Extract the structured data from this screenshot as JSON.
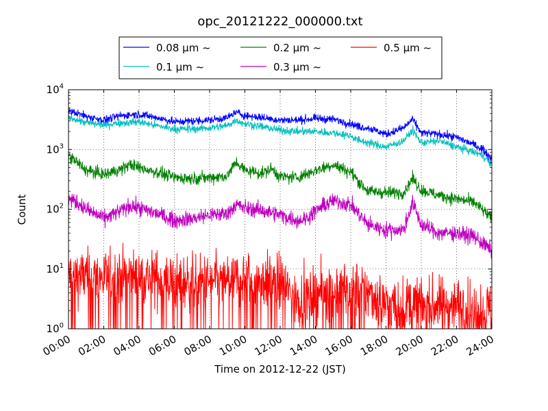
{
  "chart_data": {
    "type": "line",
    "title": "opc_20121222_000000.txt",
    "xlabel": "Time on 2012-12-22 (JST)",
    "ylabel": "Count",
    "yscale": "log",
    "ylim": [
      1,
      10000
    ],
    "xlim_hours": [
      0,
      24
    ],
    "grid": true,
    "legend_position": "top",
    "x_ticks": [
      "00:00",
      "02:00",
      "04:00",
      "06:00",
      "08:00",
      "10:00",
      "12:00",
      "14:00",
      "16:00",
      "18:00",
      "20:00",
      "22:00",
      "24:00"
    ],
    "y_ticks": [
      {
        "value": 1,
        "mantissa": "10",
        "exponent": "0"
      },
      {
        "value": 10,
        "mantissa": "10",
        "exponent": "1"
      },
      {
        "value": 100,
        "mantissa": "10",
        "exponent": "2"
      },
      {
        "value": 1000,
        "mantissa": "10",
        "exponent": "3"
      },
      {
        "value": 10000,
        "mantissa": "10",
        "exponent": "4"
      }
    ],
    "series": [
      {
        "name": "0.08 μm ~",
        "color": "#0000ff",
        "noise": 0.045,
        "x_hours": [
          0,
          1,
          2,
          3,
          4,
          5,
          6,
          7,
          8,
          9,
          9.5,
          10,
          11,
          12,
          13,
          14,
          15,
          16,
          16.5,
          17,
          18,
          19,
          19.5,
          20,
          21,
          22,
          23,
          23.5,
          24
        ],
        "values": [
          4500,
          3600,
          3100,
          3700,
          3900,
          3400,
          2900,
          3000,
          3100,
          3400,
          4200,
          3700,
          3400,
          3100,
          3100,
          3300,
          3200,
          2700,
          2400,
          2300,
          1800,
          2300,
          3200,
          1900,
          1800,
          1600,
          1200,
          1000,
          700
        ]
      },
      {
        "name": "0.1 μm ~",
        "color": "#00bfbf",
        "noise": 0.045,
        "x_hours": [
          0,
          1,
          2,
          3,
          4,
          5,
          6,
          7,
          8,
          9,
          9.5,
          10,
          11,
          12,
          13,
          14,
          15,
          16,
          16.5,
          17,
          18,
          19,
          19.5,
          20,
          21,
          22,
          23,
          23.5,
          24
        ],
        "values": [
          3500,
          2800,
          2600,
          2800,
          2900,
          2500,
          2200,
          2200,
          2300,
          2500,
          3100,
          2700,
          2400,
          2100,
          2000,
          2000,
          1900,
          1700,
          1400,
          1300,
          1100,
          1400,
          2100,
          1300,
          1400,
          1100,
          900,
          800,
          550
        ]
      },
      {
        "name": "0.2 μm ~",
        "color": "#008000",
        "noise": 0.07,
        "x_hours": [
          0,
          0.5,
          1,
          2,
          3,
          3.5,
          4,
          5,
          6,
          7,
          8,
          9,
          9.5,
          10,
          11,
          11.5,
          12,
          13,
          14,
          15,
          16,
          16.5,
          17,
          18,
          19,
          19.5,
          20,
          21,
          22,
          23,
          24
        ],
        "values": [
          800,
          600,
          450,
          380,
          470,
          560,
          500,
          420,
          340,
          330,
          340,
          360,
          620,
          450,
          400,
          480,
          350,
          340,
          450,
          560,
          420,
          280,
          200,
          190,
          190,
          330,
          210,
          170,
          150,
          130,
          70
        ]
      },
      {
        "name": "0.3 μm ~",
        "color": "#bf00bf",
        "noise": 0.09,
        "x_hours": [
          0,
          0.5,
          1,
          2,
          3,
          3.5,
          4,
          5,
          6,
          7,
          8,
          9,
          9.5,
          10,
          11,
          12,
          13,
          13.5,
          14,
          15,
          16,
          16.5,
          17,
          18,
          19,
          19.5,
          20,
          21,
          22,
          23,
          24
        ],
        "values": [
          150,
          130,
          100,
          70,
          95,
          115,
          105,
          85,
          65,
          70,
          80,
          85,
          120,
          105,
          95,
          80,
          65,
          70,
          95,
          140,
          120,
          80,
          55,
          45,
          45,
          130,
          55,
          40,
          40,
          35,
          20
        ]
      },
      {
        "name": "0.5 μm ~",
        "color": "#ff0000",
        "noise": 0.32,
        "x_hours": [
          0,
          2,
          4,
          6,
          8,
          10,
          12,
          13,
          14,
          16,
          17,
          18,
          20,
          22,
          24
        ],
        "values": [
          8,
          7,
          8,
          6,
          6,
          7,
          6,
          3,
          4,
          5,
          4,
          2.5,
          2.5,
          2.5,
          2
        ]
      }
    ]
  }
}
